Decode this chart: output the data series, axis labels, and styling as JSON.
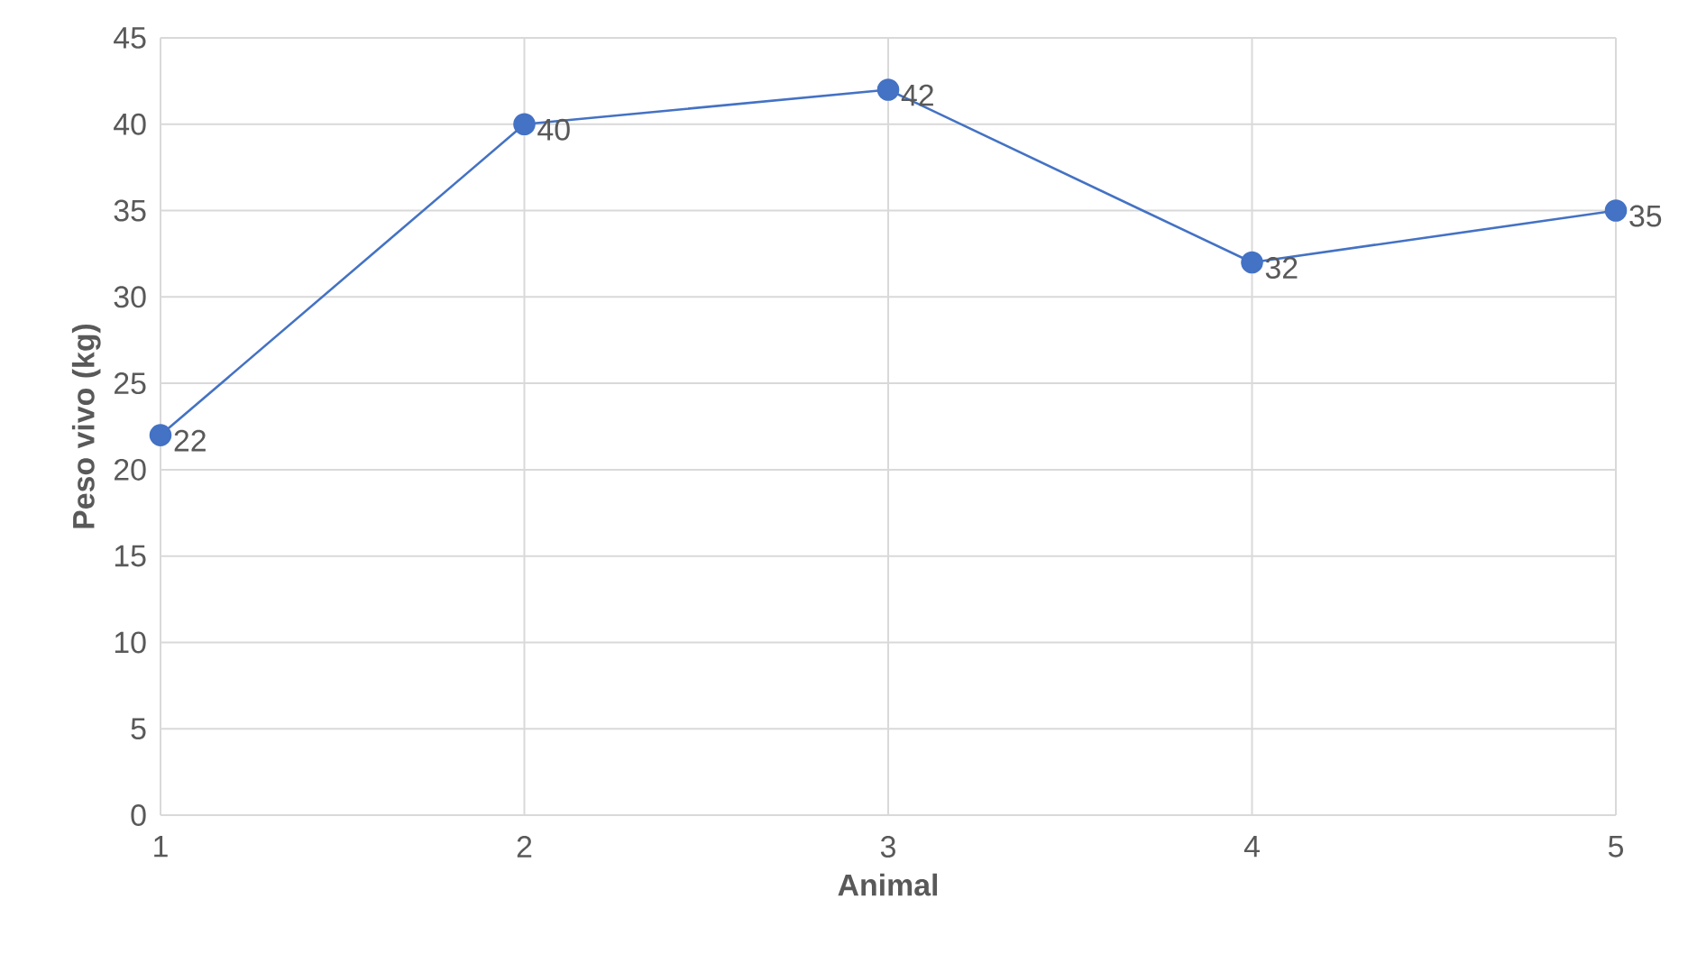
{
  "chart_data": {
    "type": "line",
    "xlabel": "Animal",
    "ylabel": "Peso vivo (kg)",
    "x": [
      1,
      2,
      3,
      4,
      5
    ],
    "series": [
      {
        "color": "#4472c4",
        "values": [
          22,
          40,
          42,
          32,
          35
        ]
      }
    ],
    "xlim": [
      1,
      5
    ],
    "xticks": [
      1,
      2,
      3,
      4,
      5
    ],
    "ylim": [
      0,
      45
    ],
    "yticks": [
      0,
      5,
      10,
      15,
      20,
      25,
      30,
      35,
      40,
      45
    ],
    "grid": true,
    "marker": "circle",
    "line_style": "solid",
    "data_labels": true
  }
}
